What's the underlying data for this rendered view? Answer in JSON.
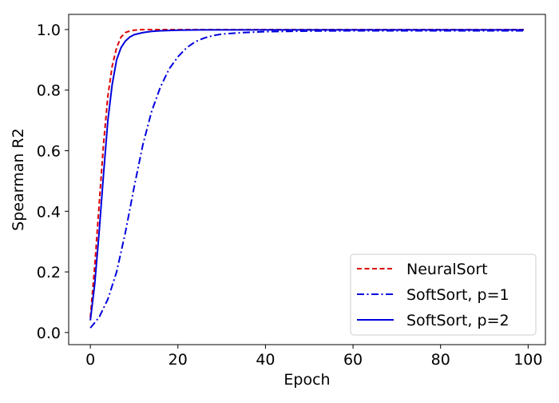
{
  "chart_data": {
    "type": "line",
    "title": "",
    "xlabel": "Epoch",
    "ylabel": "Spearman R2",
    "xlim": [
      -4.95,
      103.95
    ],
    "ylim": [
      -0.04,
      1.05
    ],
    "xticks": [
      0,
      20,
      40,
      60,
      80,
      100
    ],
    "yticks": [
      0.0,
      0.2,
      0.4,
      0.6,
      0.8,
      1.0
    ],
    "xtick_labels": [
      "0",
      "20",
      "40",
      "60",
      "80",
      "100"
    ],
    "ytick_labels": [
      "0.0",
      "0.2",
      "0.4",
      "0.6",
      "0.8",
      "1.0"
    ],
    "grid": false,
    "legend_position": "lower-right",
    "series": [
      {
        "name": "NeuralSort",
        "color": "#dd0000",
        "line_style": "dashed",
        "x": [
          0,
          1,
          2,
          3,
          4,
          5,
          6,
          7,
          8,
          9,
          10,
          12,
          15,
          20,
          30,
          40,
          50,
          60,
          70,
          80,
          90,
          99
        ],
        "y": [
          0.05,
          0.22,
          0.42,
          0.62,
          0.78,
          0.88,
          0.94,
          0.975,
          0.99,
          0.995,
          0.998,
          1.0,
          1.0,
          1.0,
          1.0,
          1.0,
          1.0,
          1.0,
          1.0,
          1.0,
          1.0,
          1.0
        ]
      },
      {
        "name": "SoftSort, p=1",
        "color": "#0000dd",
        "line_style": "dashdot",
        "x": [
          0,
          2,
          4,
          6,
          8,
          10,
          12,
          14,
          16,
          18,
          20,
          22,
          24,
          26,
          28,
          30,
          35,
          40,
          50,
          60,
          70,
          80,
          90,
          99
        ],
        "y": [
          0.015,
          0.05,
          0.11,
          0.2,
          0.33,
          0.48,
          0.62,
          0.73,
          0.81,
          0.87,
          0.91,
          0.94,
          0.96,
          0.972,
          0.98,
          0.985,
          0.99,
          0.993,
          0.995,
          0.996,
          0.996,
          0.996,
          0.996,
          0.996
        ]
      },
      {
        "name": "SoftSort, p=2",
        "color": "#0000dd",
        "line_style": "solid",
        "x": [
          0,
          1,
          2,
          3,
          4,
          5,
          6,
          7,
          8,
          9,
          10,
          12,
          14,
          16,
          18,
          20,
          25,
          30,
          40,
          50,
          60,
          70,
          80,
          90,
          99
        ],
        "y": [
          0.04,
          0.16,
          0.33,
          0.52,
          0.7,
          0.82,
          0.9,
          0.94,
          0.962,
          0.975,
          0.983,
          0.99,
          0.994,
          0.996,
          0.997,
          0.998,
          0.999,
          0.999,
          0.999,
          0.999,
          0.999,
          0.999,
          0.999,
          0.999,
          0.999
        ]
      }
    ]
  }
}
